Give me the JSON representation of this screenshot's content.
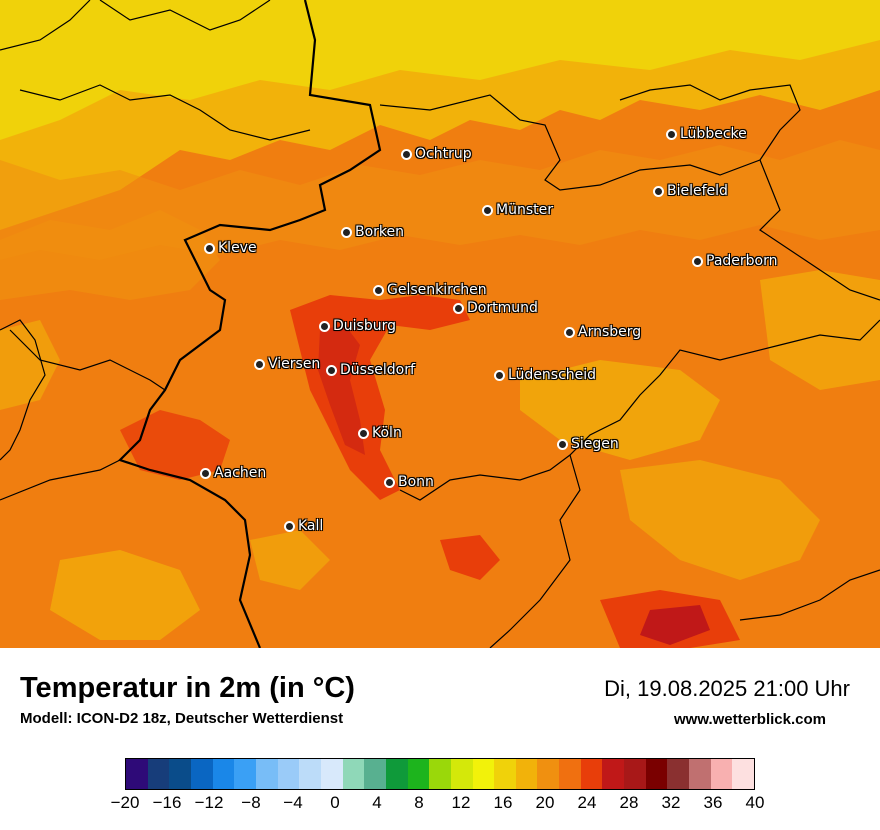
{
  "title": "Temperatur in 2m (in °C)",
  "model": "Modell: ICON-D2 18z, Deutscher Wetterdienst",
  "datetime": "Di, 19.08.2025 21:00 Uhr",
  "website": "www.wetterblick.com",
  "cities": [
    {
      "name": "Lübbecke"
    },
    {
      "name": "Ochtrup"
    },
    {
      "name": "Bielefeld"
    },
    {
      "name": "Münster"
    },
    {
      "name": "Borken"
    },
    {
      "name": "Kleve"
    },
    {
      "name": "Paderborn"
    },
    {
      "name": "Gelsenkirchen"
    },
    {
      "name": "Dortmund"
    },
    {
      "name": "Duisburg"
    },
    {
      "name": "Arnsberg"
    },
    {
      "name": "Viersen"
    },
    {
      "name": "Düsseldorf"
    },
    {
      "name": "Lüdenscheid"
    },
    {
      "name": "Köln"
    },
    {
      "name": "Siegen"
    },
    {
      "name": "Aachen"
    },
    {
      "name": "Bonn"
    },
    {
      "name": "Kall"
    }
  ],
  "legend": {
    "colors": [
      "#2e0a78",
      "#173d7a",
      "#0a4c8a",
      "#0a66c2",
      "#1a87e8",
      "#3aa0f5",
      "#78bdf7",
      "#9acbf8",
      "#bcdcf9",
      "#d8e9fb",
      "#8fd8b8",
      "#58b090",
      "#0f9a3a",
      "#1db41d",
      "#9ad80a",
      "#d4e80a",
      "#f2f20a",
      "#f0d20a",
      "#f2b20a",
      "#f09010",
      "#f07010",
      "#e83e0a",
      "#c01818",
      "#a81818",
      "#7a0000",
      "#8a3030",
      "#c07070",
      "#f8b0b0",
      "#fde0e0"
    ],
    "ticks": [
      "−20",
      "−16",
      "−12",
      "−8",
      "−4",
      "0",
      "4",
      "8",
      "12",
      "16",
      "20",
      "24",
      "28",
      "32",
      "36",
      "40"
    ]
  }
}
